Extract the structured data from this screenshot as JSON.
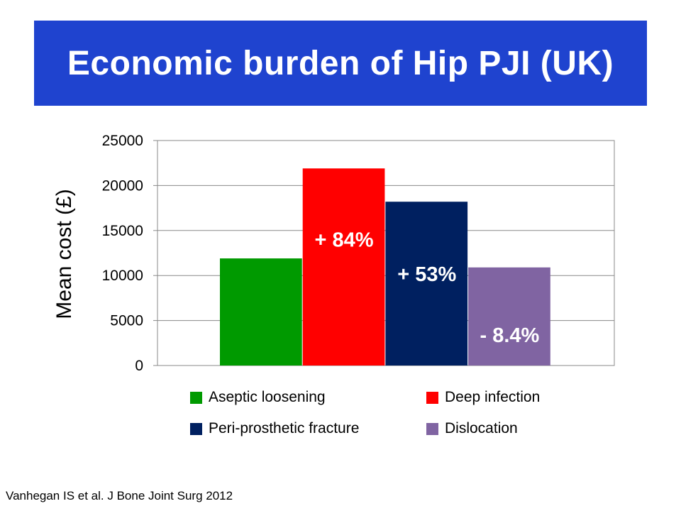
{
  "title": "Economic burden of Hip PJI (UK)",
  "citation": "Vanhegan IS et al. J Bone Joint Surg 2012",
  "colors": {
    "banner": "#1f43cf",
    "title_text": "#ffffff",
    "bar_label_text": "#ffffff",
    "grid": "#888888"
  },
  "chart_data": {
    "type": "bar",
    "title": "",
    "xlabel": "",
    "ylabel": "Mean cost (£)",
    "ylim": [
      0,
      25000
    ],
    "yticks": [
      0,
      5000,
      10000,
      15000,
      20000,
      25000
    ],
    "grid": true,
    "legend_position": "bottom",
    "series": [
      {
        "name": "Aseptic loosening",
        "value": 11900,
        "color": "#009a00",
        "annotation": ""
      },
      {
        "name": "Deep infection",
        "value": 21900,
        "color": "#ff0000",
        "annotation": "+ 84%"
      },
      {
        "name": "Peri-prosthetic fracture",
        "value": 18200,
        "color": "#002060",
        "annotation": "+ 53%"
      },
      {
        "name": "Dislocation",
        "value": 10900,
        "color": "#8064a2",
        "annotation": "- 8.4%"
      }
    ]
  }
}
